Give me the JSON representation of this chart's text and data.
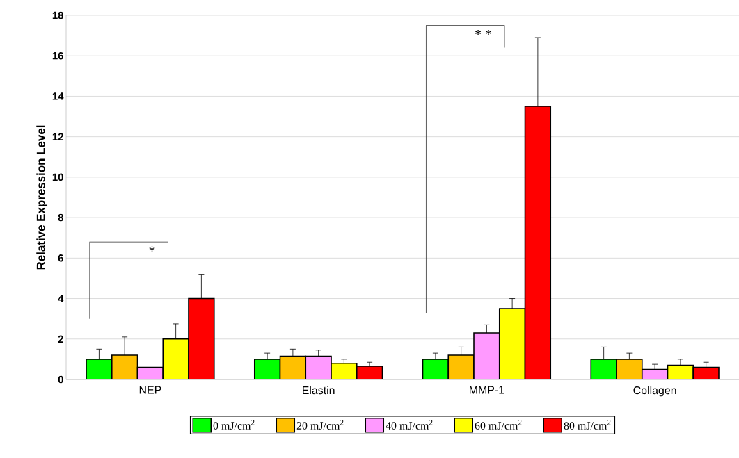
{
  "chart_data": {
    "type": "bar",
    "ylabel": "Relative Expression Level",
    "categories": [
      "NEP",
      "Elastin",
      "MMP-1",
      "Collagen"
    ],
    "series": [
      {
        "name": "0 mJ/cm$^{2}$",
        "color": "#00ff00",
        "values": [
          1.0,
          1.0,
          1.0,
          1.0
        ],
        "errors": [
          [
            1.0,
            1.5
          ],
          [
            1.0,
            1.3
          ],
          [
            1.0,
            1.3
          ],
          [
            1.0,
            1.6
          ]
        ]
      },
      {
        "name": "20 mJ/cm$^{2}$",
        "color": "#ffc000",
        "values": [
          1.2,
          1.15,
          1.2,
          1.0
        ],
        "errors": [
          [
            1.2,
            2.1
          ],
          [
            1.15,
            1.5
          ],
          [
            1.2,
            1.6
          ],
          [
            1.0,
            1.3
          ]
        ]
      },
      {
        "name": "40 mJ/cm$^{2}$",
        "color": "#ff99ff",
        "values": [
          0.6,
          1.15,
          2.3,
          0.5
        ],
        "errors": [
          null,
          [
            1.15,
            1.45
          ],
          [
            2.3,
            2.7
          ],
          [
            0.5,
            0.75
          ]
        ]
      },
      {
        "name": "60 mJ/cm$^{2}$",
        "color": "#ffff00",
        "values": [
          2.0,
          0.8,
          3.5,
          0.7
        ],
        "errors": [
          [
            2.0,
            2.75
          ],
          [
            0.8,
            1.0
          ],
          [
            3.5,
            4.0
          ],
          [
            0.7,
            1.0
          ]
        ]
      },
      {
        "name": "80 mJ/cm$^{2}$",
        "color": "#ff0000",
        "values": [
          4.0,
          0.65,
          13.5,
          0.6
        ],
        "errors": [
          [
            4.0,
            5.2
          ],
          [
            0.65,
            0.85
          ],
          [
            13.5,
            16.9
          ],
          [
            0.6,
            0.85
          ]
        ]
      }
    ],
    "ylim": [
      0,
      18
    ],
    "yticks": [
      0,
      2,
      4,
      6,
      8,
      10,
      12,
      14,
      16,
      18
    ],
    "grid": "y",
    "legend": "bottom",
    "annotations": [
      "*",
      "* *"
    ]
  }
}
